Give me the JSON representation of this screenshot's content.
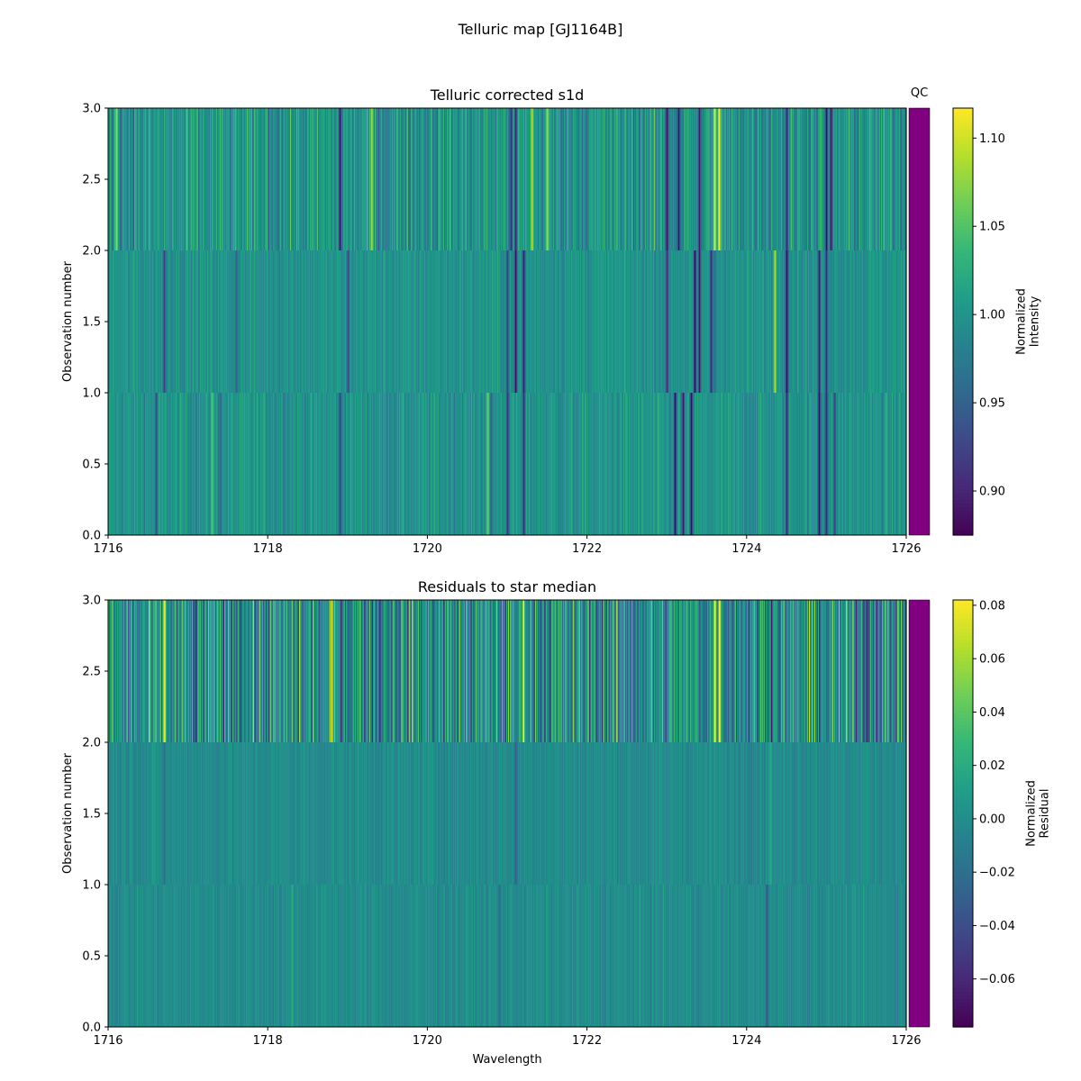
{
  "figure": {
    "suptitle": "Telluric map [GJ1164B]",
    "qc_label": "QC",
    "qc_color": "#800080",
    "colormap": "viridis",
    "cmap_stops": [
      "#440154",
      "#482878",
      "#3e4989",
      "#31688e",
      "#26828e",
      "#1f9e89",
      "#35b779",
      "#6ece58",
      "#b5de2b",
      "#fde725"
    ]
  },
  "chart_data": [
    {
      "type": "heatmap",
      "title": "Telluric corrected s1d",
      "xlabel": "",
      "ylabel": "Observation number",
      "xlim": [
        1716,
        1726
      ],
      "ylim": [
        0,
        3
      ],
      "xticks": [
        "1716",
        "1718",
        "1720",
        "1722",
        "1724",
        "1726"
      ],
      "yticks": [
        "0.0",
        "0.5",
        "1.0",
        "1.5",
        "2.0",
        "2.5",
        "3.0"
      ],
      "colorbar": {
        "label_lines": [
          "Normalized",
          "Intensity"
        ],
        "vmin": 0.875,
        "vmax": 1.117,
        "ticks": [
          "0.90",
          "0.95",
          "1.00",
          "1.05",
          "1.10"
        ]
      },
      "rows": [
        {
          "observation": 0,
          "noise": 0.022,
          "lines": [
            [
              1716.6,
              0.93
            ],
            [
              1717.4,
              0.96
            ],
            [
              1718.9,
              0.92
            ],
            [
              1720.8,
              0.95
            ],
            [
              1721.0,
              0.91
            ],
            [
              1721.2,
              0.9
            ],
            [
              1723.1,
              0.875
            ],
            [
              1723.2,
              0.89
            ],
            [
              1723.3,
              0.88
            ],
            [
              1724.5,
              0.9
            ],
            [
              1724.9,
              0.88
            ],
            [
              1725.0,
              0.9
            ],
            [
              1725.1,
              0.92
            ],
            [
              1720.75,
              1.06
            ],
            [
              1717.3,
              1.05
            ]
          ]
        },
        {
          "observation": 1,
          "noise": 0.018,
          "lines": [
            [
              1716.7,
              0.92
            ],
            [
              1717.6,
              0.95
            ],
            [
              1719.0,
              0.93
            ],
            [
              1721.1,
              0.88
            ],
            [
              1721.2,
              0.89
            ],
            [
              1721.0,
              0.92
            ],
            [
              1723.0,
              0.9
            ],
            [
              1723.35,
              0.87
            ],
            [
              1723.4,
              0.89
            ],
            [
              1723.55,
              0.9
            ],
            [
              1724.35,
              1.09
            ],
            [
              1724.5,
              0.88
            ],
            [
              1724.9,
              0.89
            ],
            [
              1725.0,
              0.9
            ],
            [
              1723.6,
              0.96
            ]
          ]
        },
        {
          "observation": 2,
          "noise": 0.04,
          "lines": [
            [
              1718.9,
              0.89
            ],
            [
              1721.05,
              0.91
            ],
            [
              1721.1,
              0.9
            ],
            [
              1721.3,
              1.09
            ],
            [
              1721.5,
              1.08
            ],
            [
              1723.0,
              0.885
            ],
            [
              1723.15,
              0.88
            ],
            [
              1723.4,
              0.89
            ],
            [
              1723.6,
              1.117
            ],
            [
              1723.65,
              1.117
            ],
            [
              1724.5,
              0.9
            ],
            [
              1725.0,
              0.88
            ],
            [
              1725.05,
              0.89
            ],
            [
              1719.3,
              1.08
            ],
            [
              1716.1,
              1.08
            ]
          ]
        }
      ]
    },
    {
      "type": "heatmap",
      "title": "Residuals to star median",
      "xlabel": "Wavelength",
      "ylabel": "Observation number",
      "xlim": [
        1716,
        1726
      ],
      "ylim": [
        0,
        3
      ],
      "xticks": [
        "1716",
        "1718",
        "1720",
        "1722",
        "1724",
        "1726"
      ],
      "yticks": [
        "0.0",
        "0.5",
        "1.0",
        "1.5",
        "2.0",
        "2.5",
        "3.0"
      ],
      "colorbar": {
        "label_lines": [
          "Normalized",
          "Residual"
        ],
        "vmin": -0.078,
        "vmax": 0.082,
        "ticks": [
          "−0.06",
          "−0.04",
          "−0.02",
          "0.00",
          "0.02",
          "0.04",
          "0.06",
          "0.08"
        ]
      },
      "rows": [
        {
          "observation": 0,
          "noise": 0.009,
          "lines": [
            [
              1724.25,
              -0.035
            ],
            [
              1718.3,
              0.02
            ],
            [
              1720.9,
              -0.02
            ]
          ]
        },
        {
          "observation": 1,
          "noise": 0.009,
          "lines": [
            [
              1721.1,
              -0.03
            ],
            [
              1724.3,
              0.02
            ],
            [
              1716.7,
              -0.02
            ]
          ]
        },
        {
          "observation": 2,
          "noise": 0.045,
          "lines": [
            [
              1716.7,
              0.08
            ],
            [
              1718.8,
              0.08
            ],
            [
              1721.2,
              0.08
            ],
            [
              1723.6,
              0.082
            ],
            [
              1723.65,
              0.082
            ],
            [
              1725.5,
              -0.06
            ],
            [
              1717.1,
              -0.06
            ],
            [
              1719.4,
              -0.05
            ]
          ]
        }
      ]
    }
  ]
}
